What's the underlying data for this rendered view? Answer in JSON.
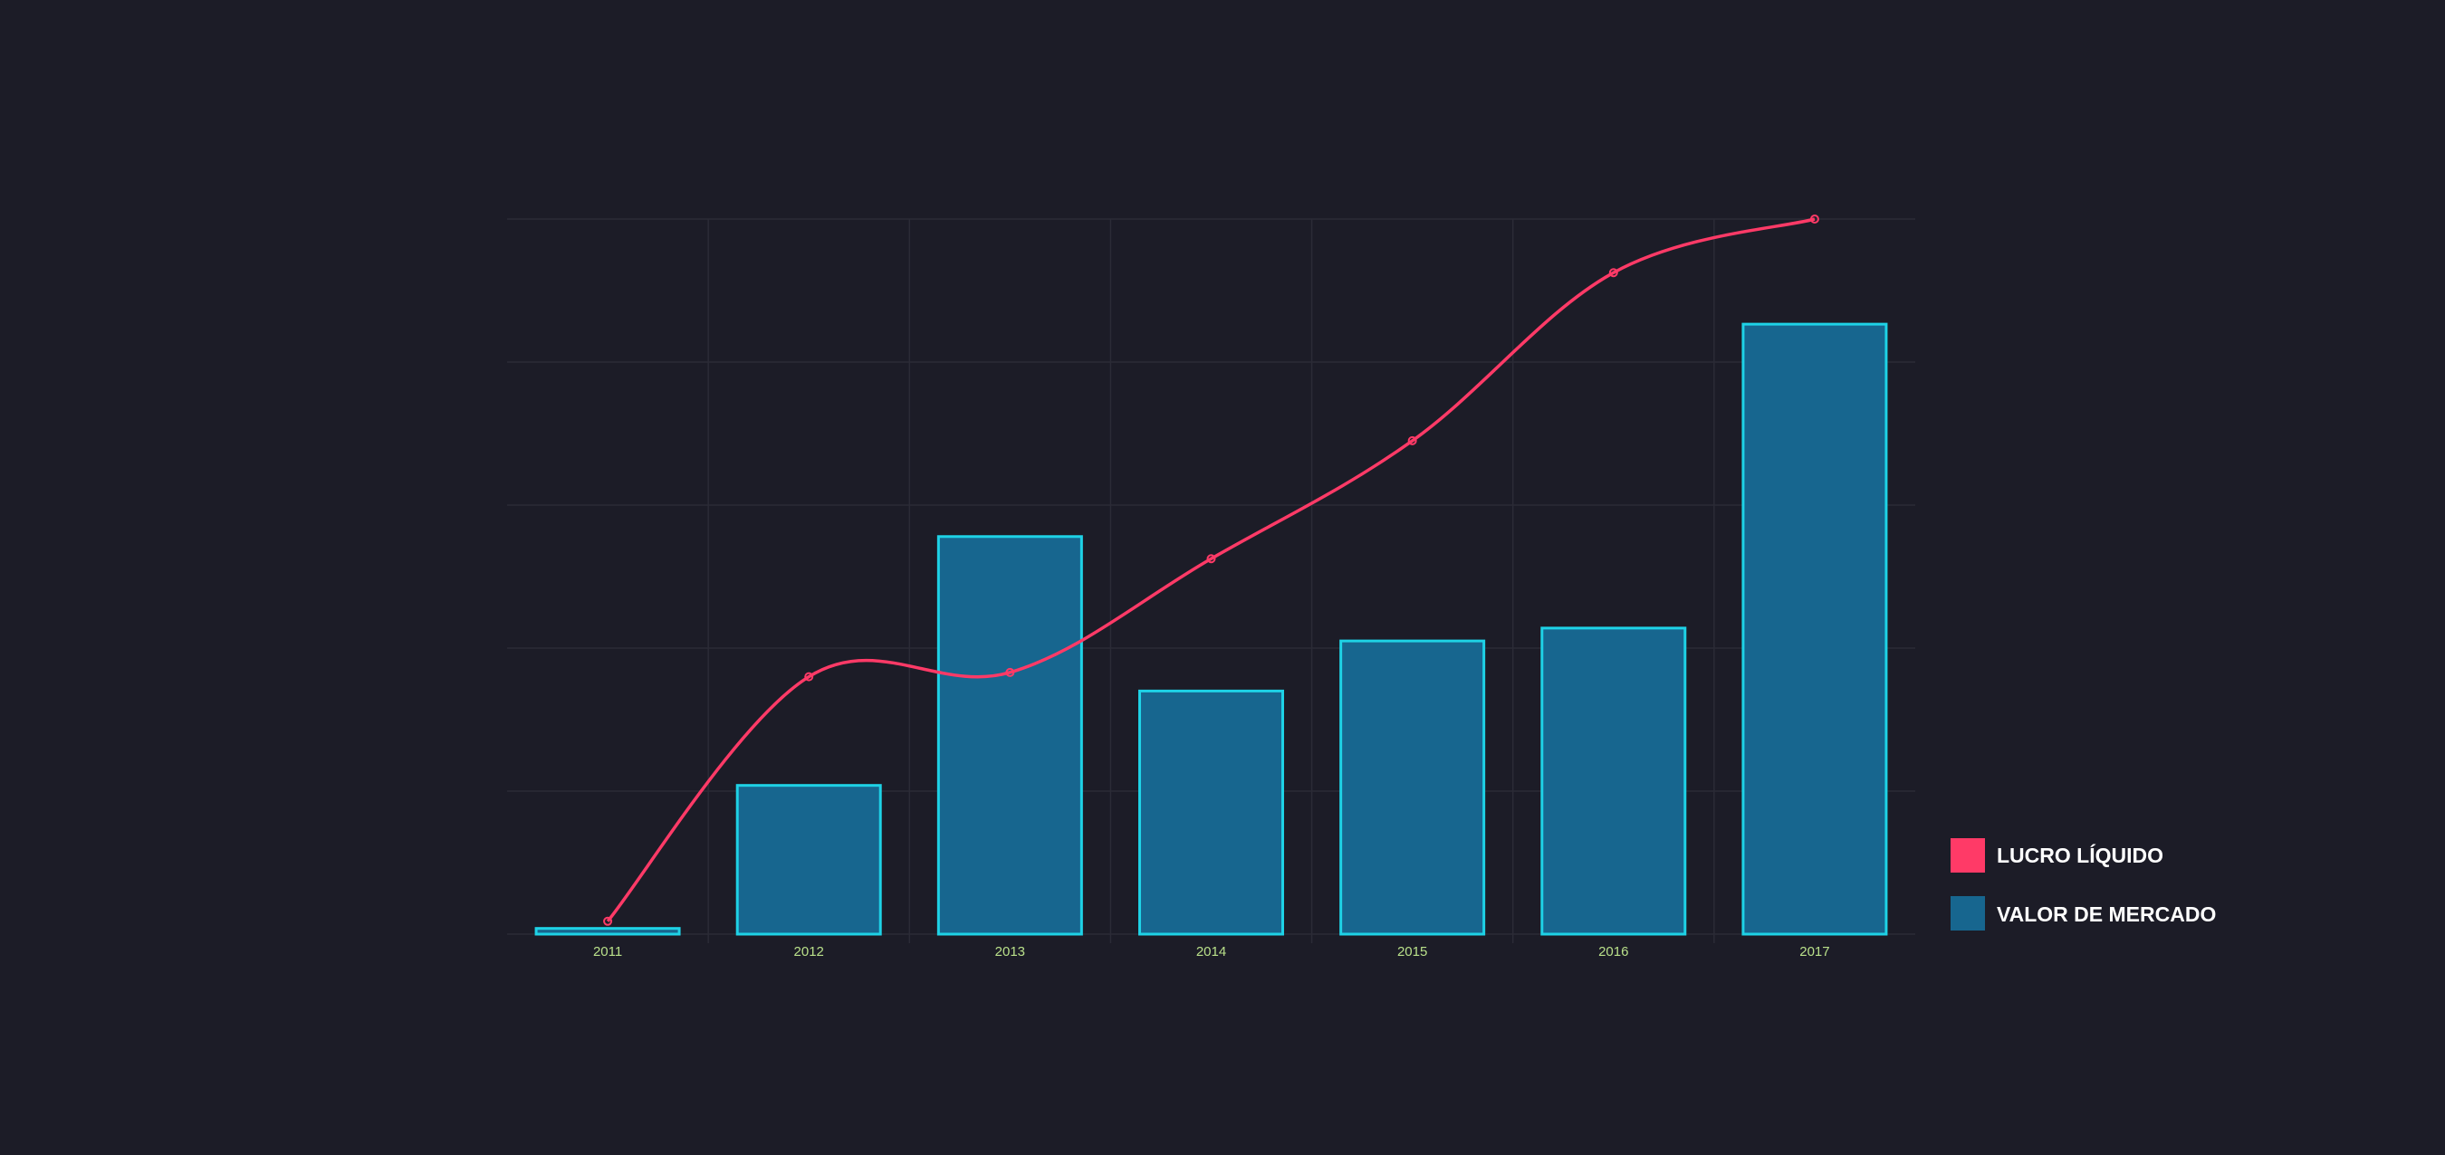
{
  "chart_data": {
    "type": "bar",
    "categories": [
      "2011",
      "2012",
      "2013",
      "2014",
      "2015",
      "2016",
      "2017"
    ],
    "series": [
      {
        "name": "VALOR DE MERCADO",
        "type": "bar",
        "values": [
          0.8,
          20.8,
          55.6,
          34.0,
          41.0,
          42.8,
          85.3
        ],
        "color": "#17668f",
        "border_color": "#1ed2e6"
      },
      {
        "name": "LUCRO LÍQUIDO",
        "type": "line",
        "smooth": true,
        "values": [
          1.8,
          36.0,
          36.6,
          52.5,
          69.0,
          92.5,
          100.0
        ],
        "color": "#ff3a67"
      }
    ],
    "ylim": [
      0,
      100
    ],
    "y_gridlines": [
      0,
      20,
      40,
      60,
      80,
      100
    ],
    "grid": true,
    "legend_position": "right-bottom"
  },
  "colors": {
    "background": "#1c1c27",
    "grid": "#2b2b36",
    "tick_label": "#b9e08a",
    "legend_text": "#ffffff"
  }
}
